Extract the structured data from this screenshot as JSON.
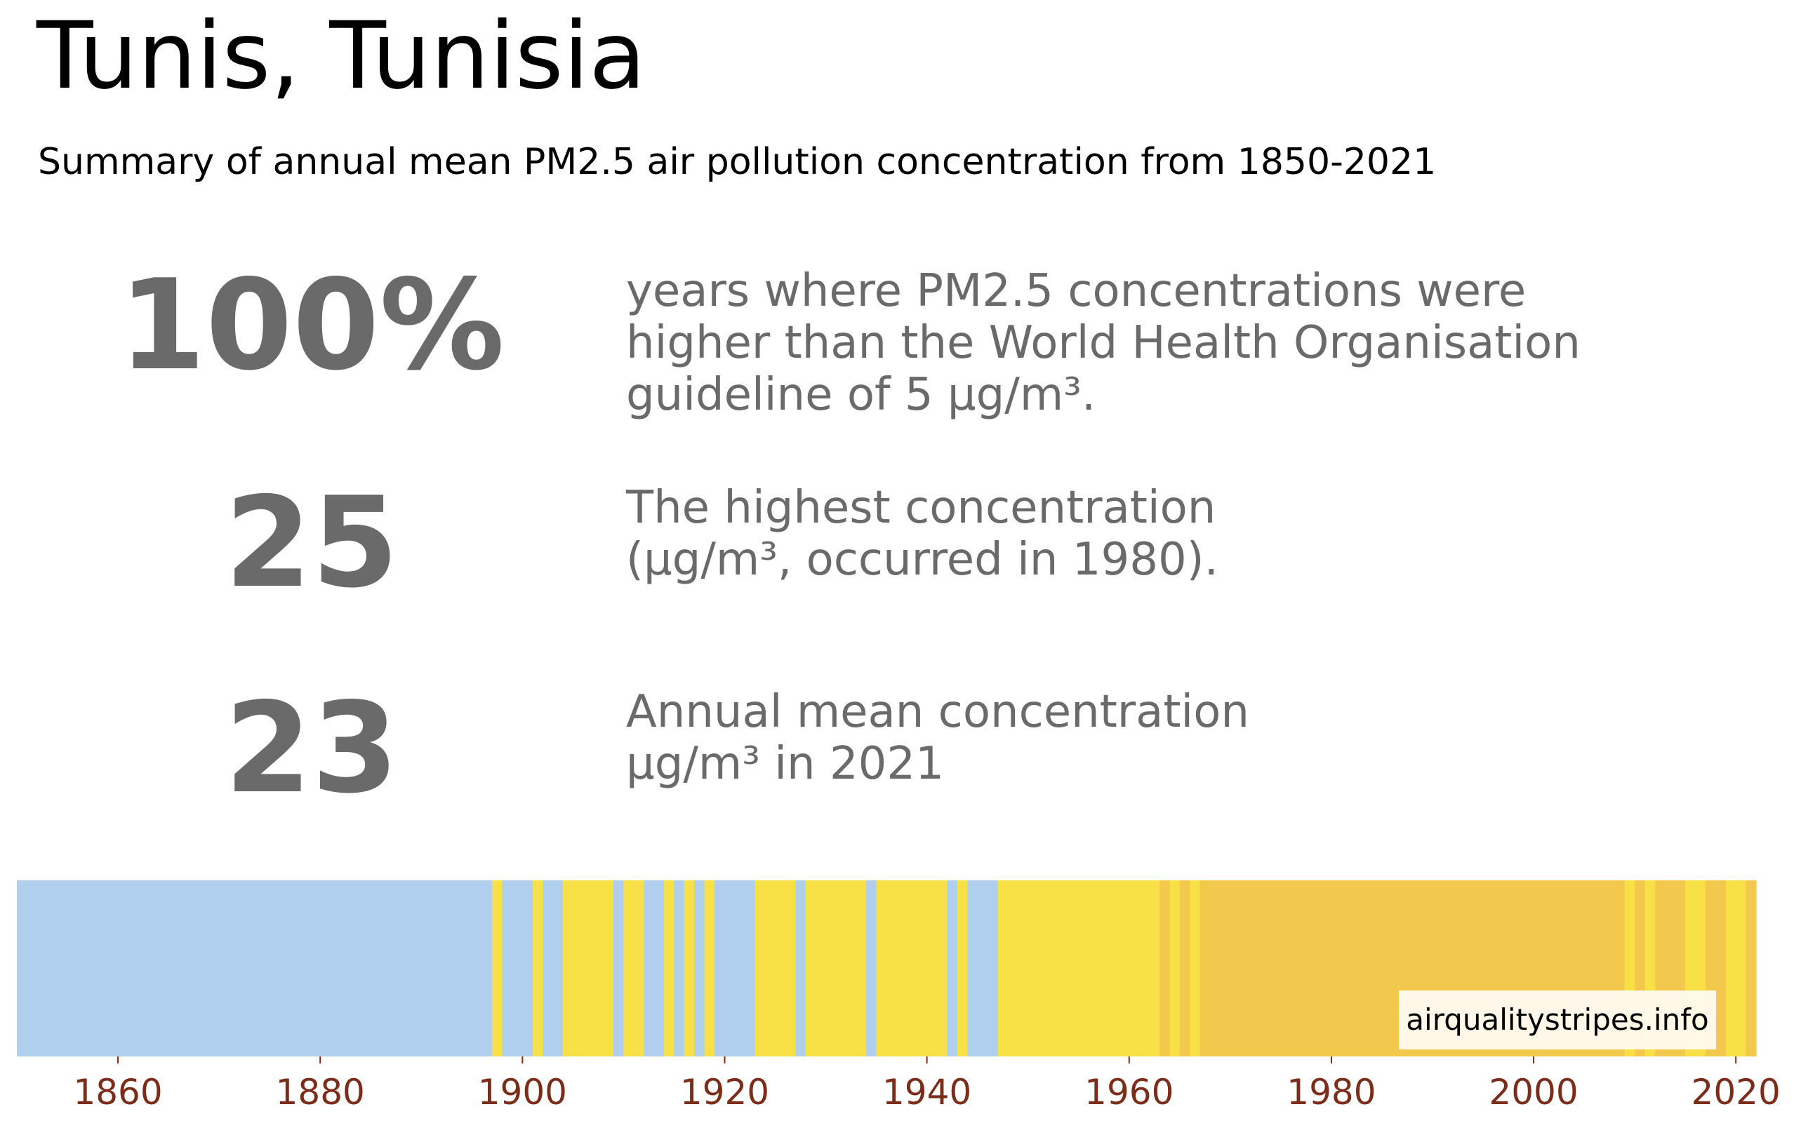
{
  "header": {
    "title": "Tunis, Tunisia",
    "subtitle": "Summary of annual mean PM2.5 air pollution concentration from 1850-2021"
  },
  "stats": [
    {
      "value": "100%",
      "description": "years where PM2.5 concentrations were\nhigher than the World Health Organisation\nguideline of 5 µg/m³."
    },
    {
      "value": "25",
      "description": "The highest concentration\n(µg/m³, occurred in 1980)."
    },
    {
      "value": "23",
      "description": "Annual mean concentration\nµg/m³ in 2021"
    }
  ],
  "colors": {
    "stat_text": "#6a6a6a",
    "tick_text": "#7b2d1a",
    "low": "#b0cfee",
    "mid": "#f8e047",
    "high": "#f2c94c"
  },
  "chart_data": {
    "type": "heatmap",
    "description_level_legend": {
      "low": "light blue",
      "mid": "yellow",
      "high": "golden yellow"
    },
    "x_range": [
      1850,
      2022
    ],
    "xticks": [
      1860,
      1880,
      1900,
      1920,
      1940,
      1960,
      1980,
      2000,
      2020
    ],
    "years": [
      1850,
      1851,
      1852,
      1853,
      1854,
      1855,
      1856,
      1857,
      1858,
      1859,
      1860,
      1861,
      1862,
      1863,
      1864,
      1865,
      1866,
      1867,
      1868,
      1869,
      1870,
      1871,
      1872,
      1873,
      1874,
      1875,
      1876,
      1877,
      1878,
      1879,
      1880,
      1881,
      1882,
      1883,
      1884,
      1885,
      1886,
      1887,
      1888,
      1889,
      1890,
      1891,
      1892,
      1893,
      1894,
      1895,
      1896,
      1897,
      1898,
      1899,
      1900,
      1901,
      1902,
      1903,
      1904,
      1905,
      1906,
      1907,
      1908,
      1909,
      1910,
      1911,
      1912,
      1913,
      1914,
      1915,
      1916,
      1917,
      1918,
      1919,
      1920,
      1921,
      1922,
      1923,
      1924,
      1925,
      1926,
      1927,
      1928,
      1929,
      1930,
      1931,
      1932,
      1933,
      1934,
      1935,
      1936,
      1937,
      1938,
      1939,
      1940,
      1941,
      1942,
      1943,
      1944,
      1945,
      1946,
      1947,
      1948,
      1949,
      1950,
      1951,
      1952,
      1953,
      1954,
      1955,
      1956,
      1957,
      1958,
      1959,
      1960,
      1961,
      1962,
      1963,
      1964,
      1965,
      1966,
      1967,
      1968,
      1969,
      1970,
      1971,
      1972,
      1973,
      1974,
      1975,
      1976,
      1977,
      1978,
      1979,
      1980,
      1981,
      1982,
      1983,
      1984,
      1985,
      1986,
      1987,
      1988,
      1989,
      1990,
      1991,
      1992,
      1993,
      1994,
      1995,
      1996,
      1997,
      1998,
      1999,
      2000,
      2001,
      2002,
      2003,
      2004,
      2005,
      2006,
      2007,
      2008,
      2009,
      2010,
      2011,
      2012,
      2013,
      2014,
      2015,
      2016,
      2017,
      2018,
      2019,
      2020,
      2021
    ],
    "levels": [
      "low",
      "low",
      "low",
      "low",
      "low",
      "low",
      "low",
      "low",
      "low",
      "low",
      "low",
      "low",
      "low",
      "low",
      "low",
      "low",
      "low",
      "low",
      "low",
      "low",
      "low",
      "low",
      "low",
      "low",
      "low",
      "low",
      "low",
      "low",
      "low",
      "low",
      "low",
      "low",
      "low",
      "low",
      "low",
      "low",
      "low",
      "low",
      "low",
      "low",
      "low",
      "low",
      "low",
      "low",
      "low",
      "low",
      "low",
      "mid",
      "low",
      "low",
      "low",
      "mid",
      "low",
      "low",
      "mid",
      "mid",
      "mid",
      "mid",
      "mid",
      "low",
      "mid",
      "mid",
      "low",
      "low",
      "mid",
      "low",
      "mid",
      "low",
      "mid",
      "low",
      "low",
      "low",
      "low",
      "mid",
      "mid",
      "mid",
      "mid",
      "low",
      "mid",
      "mid",
      "mid",
      "mid",
      "mid",
      "mid",
      "low",
      "mid",
      "mid",
      "mid",
      "mid",
      "mid",
      "mid",
      "mid",
      "low",
      "mid",
      "low",
      "low",
      "low",
      "mid",
      "mid",
      "mid",
      "mid",
      "mid",
      "mid",
      "mid",
      "mid",
      "mid",
      "mid",
      "mid",
      "mid",
      "mid",
      "mid",
      "mid",
      "mid",
      "high",
      "mid",
      "high",
      "mid",
      "high",
      "high",
      "high",
      "high",
      "high",
      "high",
      "high",
      "high",
      "high",
      "high",
      "high",
      "high",
      "high",
      "high",
      "high",
      "high",
      "high",
      "high",
      "high",
      "high",
      "high",
      "high",
      "high",
      "high",
      "high",
      "high",
      "high",
      "high",
      "high",
      "high",
      "high",
      "high",
      "high",
      "high",
      "high",
      "high",
      "high",
      "high",
      "high",
      "high",
      "high",
      "high",
      "mid",
      "high",
      "mid",
      "high",
      "high",
      "high",
      "mid",
      "mid",
      "high",
      "high",
      "mid",
      "mid",
      "high",
      "high",
      "mid",
      "high",
      "mid",
      "mid",
      "high"
    ],
    "credit": "airqualitystripes.info"
  }
}
